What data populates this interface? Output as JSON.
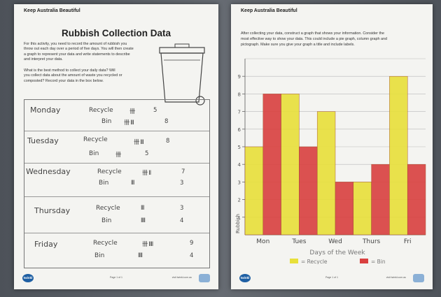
{
  "left_sheet": {
    "brand": "Keep Australia Beautiful",
    "title": "Rubbish Collection Data",
    "intro": [
      "For this activity, you need to record the amount of rubbish you",
      "throw out each day over a period of five days. You will then create",
      "a graph to represent your data and write statements to describe",
      "and interpret your data."
    ],
    "question": [
      "What is the best method to collect your daily data? Will",
      "you collect data about the amount of waste you recycled or",
      "composted? Record your data in the box below."
    ],
    "rows": [
      {
        "day": "Monday",
        "recycle_label": "Recycle",
        "recycle_tally": "卌",
        "recycle_num": "5",
        "bin_label": "Bin",
        "bin_tally": "卌 III",
        "bin_num": "8"
      },
      {
        "day": "Tuesday",
        "recycle_label": "Recycle",
        "recycle_tally": "卌 III",
        "recycle_num": "8",
        "bin_label": "Bin",
        "bin_tally": "卌",
        "bin_num": "5"
      },
      {
        "day": "Wednesday",
        "recycle_label": "Recycle",
        "recycle_tally": "卌 II",
        "recycle_num": "7",
        "bin_label": "Bin",
        "bin_tally": "III",
        "bin_num": "3"
      },
      {
        "day": "Thursday",
        "recycle_label": "Recycle",
        "recycle_tally": "III",
        "recycle_num": "3",
        "bin_label": "Bin",
        "bin_tally": "IIII",
        "bin_num": "4"
      },
      {
        "day": "Friday",
        "recycle_label": "Recycle",
        "recycle_tally": "卌 IIII",
        "recycle_num": "9",
        "bin_label": "Bin",
        "bin_tally": "IIII",
        "bin_num": "4"
      }
    ],
    "footer": {
      "logo": "twinkl",
      "page": "Page 1 of 1",
      "site": "visit twinkl.com.au"
    }
  },
  "right_sheet": {
    "brand": "Keep Australia Beautiful",
    "intro": [
      "After collecting your data, construct a graph that shows your information. Consider the",
      "most effective way to show your data. This could include a pie graph, column graph and",
      "pictograph. Make sure you give your graph a title and include labels."
    ],
    "footer": {
      "logo": "twinkl",
      "page": "Page 1 of 1",
      "site": "visit twinkl.com.au"
    }
  },
  "chart_data": {
    "type": "bar",
    "categories": [
      "Mon",
      "Tues",
      "Wed",
      "Thurs",
      "Fri"
    ],
    "series": [
      {
        "name": "Recycle",
        "color": "#e8e03a",
        "values": [
          5,
          8,
          7,
          3,
          9
        ]
      },
      {
        "name": "Bin",
        "color": "#d9403f",
        "values": [
          8,
          5,
          3,
          4,
          4
        ]
      }
    ],
    "title": "",
    "xlabel": "Days of the Week",
    "ylabel": "Rubbish",
    "ylim": [
      0,
      10
    ],
    "yticks": [
      "1",
      "2",
      "3",
      "4",
      "5",
      "6",
      "7",
      "8",
      "9"
    ],
    "legend": "bottom",
    "legend_entries": [
      "= Recycle",
      "= Bin"
    ]
  }
}
